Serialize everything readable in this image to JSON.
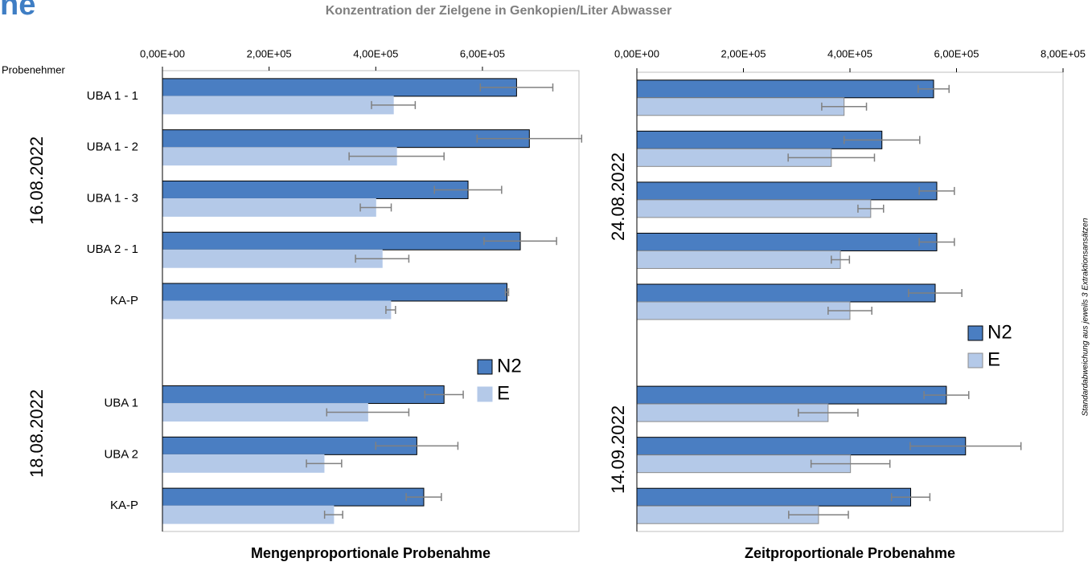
{
  "header": {
    "fragment": "ne",
    "title": "Konzentration der Zielgene in Genkopien/Liter Abwasser"
  },
  "note": "Standardabweichung aus jeweils 3 Extraktionsansätzen",
  "chart_data": [
    {
      "type": "bar",
      "orientation": "horizontal",
      "category_axis_title": "Probenehmer",
      "categories": [
        "UBA 1 - 1",
        "UBA 1 - 2",
        "UBA 1 - 3",
        "UBA 2 - 1",
        "KA-P",
        null,
        "UBA 1",
        "UBA 2",
        "KA-P"
      ],
      "group_labels": [
        "16.08.2022",
        "18.08.2022"
      ],
      "series": [
        {
          "name": "N2",
          "color": "#4a7ec2",
          "edgecolor": "#000000",
          "values": [
            664000,
            688000,
            573000,
            671000,
            646000,
            null,
            528000,
            477000,
            490000
          ],
          "errors": [
            68000,
            98000,
            63000,
            68000,
            3000,
            null,
            36000,
            77000,
            33000
          ]
        },
        {
          "name": "E",
          "color": "#b4c9e8",
          "edgecolor": "#b4c9e8",
          "values": [
            433000,
            439000,
            400000,
            412000,
            428000,
            null,
            385000,
            303000,
            321000
          ],
          "errors": [
            41000,
            89000,
            29000,
            50000,
            9000,
            null,
            77000,
            33000,
            17000
          ]
        }
      ],
      "xlim": [
        0,
        781000
      ],
      "xticks": [
        {
          "value": 0,
          "label": "0,00E+00"
        },
        {
          "value": 200000,
          "label": "2,00E+05"
        },
        {
          "value": 400000,
          "label": "4,00E+05"
        },
        {
          "value": 600000,
          "label": "6,00E+05"
        }
      ],
      "xlabel": "Mengenproportionale Probenahme",
      "legend": "right"
    },
    {
      "type": "bar",
      "orientation": "horizontal",
      "categories": [
        null,
        null,
        null,
        null,
        null,
        null,
        null,
        null,
        null
      ],
      "group_labels": [
        "24.08.2022",
        "14.09.2022"
      ],
      "series": [
        {
          "name": "N2",
          "color": "#4a7ec2",
          "edgecolor": "#000000",
          "values": [
            557000,
            460000,
            563000,
            563000,
            560000,
            null,
            581000,
            617000,
            514000
          ],
          "errors": [
            29000,
            71000,
            33000,
            33000,
            50000,
            null,
            42000,
            104000,
            36000
          ]
        },
        {
          "name": "E",
          "color": "#b4c9e8",
          "edgecolor": "#8c8c8c",
          "values": [
            389000,
            365000,
            439000,
            382000,
            400000,
            null,
            359000,
            401000,
            341000
          ],
          "errors": [
            42000,
            81000,
            24000,
            17000,
            41000,
            null,
            56000,
            74000,
            56000
          ]
        }
      ],
      "xlim": [
        0,
        800000
      ],
      "xticks": [
        {
          "value": 0,
          "label": "0,00E+00"
        },
        {
          "value": 200000,
          "label": "2,00E+05"
        },
        {
          "value": 400000,
          "label": "4,00E+05"
        },
        {
          "value": 600000,
          "label": "6,00E+05"
        },
        {
          "value": 800000,
          "label": "8,00E+05"
        }
      ],
      "xlabel": "Zeitproportionale Probenahme",
      "legend": "right"
    }
  ]
}
